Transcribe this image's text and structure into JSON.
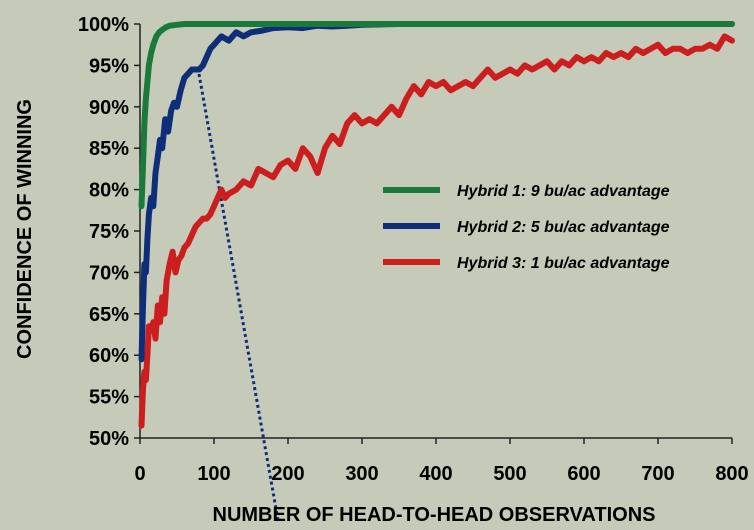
{
  "chart_data": {
    "type": "line",
    "title": "",
    "xlabel": "NUMBER OF HEAD-TO-HEAD OBSERVATIONS",
    "ylabel": "CONFIDENCE OF WINNING",
    "xlim": [
      0,
      800
    ],
    "ylim": [
      50,
      100
    ],
    "x_ticks": [
      "0",
      "100",
      "200",
      "300",
      "400",
      "500",
      "600",
      "700",
      "800"
    ],
    "y_ticks": [
      "50%",
      "55%",
      "60%",
      "65%",
      "70%",
      "75%",
      "80%",
      "85%",
      "90%",
      "95%",
      "100%"
    ],
    "grid": false,
    "legend_position": "right",
    "series": [
      {
        "name": "Hybrid 1: 9 bu/ac advantage",
        "color": "#1a7a3a",
        "x": [
          2,
          4,
          6,
          8,
          10,
          12,
          15,
          18,
          22,
          26,
          30,
          35,
          40,
          50,
          60,
          80,
          100,
          150,
          200,
          300,
          400,
          500,
          600,
          700,
          800
        ],
        "y": [
          78,
          83,
          88,
          91,
          93,
          95,
          96.5,
          97.5,
          98.5,
          99,
          99.3,
          99.6,
          99.8,
          99.9,
          100,
          100,
          100,
          100,
          100,
          100,
          100,
          100,
          100,
          100,
          100
        ]
      },
      {
        "name": "Hybrid 2: 5 bu/ac advantage",
        "color": "#0f2e7a",
        "x": [
          2,
          4,
          6,
          8,
          10,
          12,
          15,
          18,
          21,
          24,
          27,
          30,
          34,
          38,
          42,
          46,
          50,
          55,
          60,
          65,
          70,
          75,
          80,
          85,
          90,
          95,
          100,
          110,
          120,
          130,
          140,
          150,
          165,
          180,
          200,
          220,
          240,
          260,
          280,
          300,
          350,
          400,
          500,
          600,
          700,
          800
        ],
        "y": [
          59.5,
          66,
          71,
          70,
          74,
          77,
          79,
          78,
          82,
          84,
          86,
          85,
          88.5,
          87,
          89.5,
          90.5,
          90,
          92,
          93.5,
          94,
          94.5,
          94.5,
          94.5,
          95,
          96,
          97,
          97.5,
          98.5,
          98,
          99,
          98.5,
          99,
          99.2,
          99.5,
          99.6,
          99.5,
          99.8,
          99.7,
          99.8,
          99.9,
          100,
          100,
          100,
          100,
          100,
          100
        ]
      },
      {
        "name": "Hybrid 3: 1 bu/ac advantage",
        "color": "#cc1e1e",
        "x": [
          2,
          4,
          6,
          8,
          10,
          12,
          15,
          18,
          21,
          24,
          27,
          30,
          33,
          36,
          40,
          44,
          48,
          52,
          56,
          60,
          65,
          70,
          75,
          80,
          85,
          90,
          95,
          100,
          105,
          110,
          115,
          120,
          130,
          140,
          150,
          160,
          170,
          180,
          190,
          200,
          210,
          220,
          230,
          240,
          250,
          260,
          270,
          280,
          290,
          300,
          310,
          320,
          330,
          340,
          350,
          360,
          370,
          380,
          390,
          400,
          410,
          420,
          430,
          440,
          450,
          460,
          470,
          480,
          490,
          500,
          510,
          520,
          530,
          540,
          550,
          560,
          570,
          580,
          590,
          600,
          610,
          620,
          630,
          640,
          650,
          660,
          670,
          680,
          690,
          700,
          710,
          720,
          730,
          740,
          750,
          760,
          770,
          780,
          790,
          800
        ],
        "y": [
          51.5,
          56,
          58,
          57,
          60,
          63.5,
          63,
          64,
          62,
          66,
          64,
          67,
          65,
          69,
          71,
          72.5,
          70,
          71.5,
          72,
          73,
          73.5,
          74.5,
          75.5,
          76,
          76.5,
          76.5,
          77,
          78,
          79,
          80,
          79,
          79.5,
          80,
          81,
          80.5,
          82.5,
          82,
          81.5,
          83,
          83.5,
          82.5,
          85,
          84,
          82,
          85,
          86.5,
          85.5,
          88,
          89,
          88,
          88.5,
          88,
          89,
          90,
          89,
          91,
          92.5,
          91.5,
          93,
          92.5,
          93,
          92,
          92.5,
          93,
          92.5,
          93.5,
          94.5,
          93.5,
          94,
          94.5,
          94,
          95,
          94.5,
          95,
          95.5,
          94.5,
          95.5,
          95,
          96,
          95.5,
          96,
          95.5,
          96.5,
          96,
          96.5,
          96,
          97,
          96.5,
          97,
          97.5,
          96.5,
          97,
          97,
          96.5,
          97,
          97,
          97.5,
          97,
          98.5,
          98
        ]
      }
    ]
  }
}
